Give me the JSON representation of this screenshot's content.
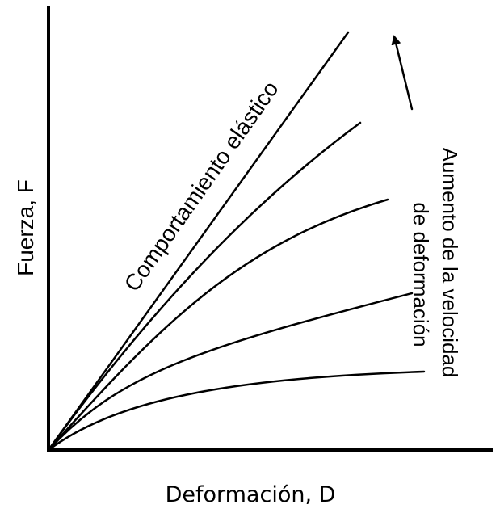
{
  "diagram": {
    "x_axis_label": "Deformación, D",
    "y_axis_label": "Fuerza, F",
    "elastic_label": "Comportamiento elástico",
    "rate_label_line1": "Aumento de la velocidad",
    "rate_label_line2": "de deformación",
    "curves": [
      {
        "kind": "elastic-linear"
      },
      {
        "kind": "strain-rate-curve"
      },
      {
        "kind": "strain-rate-curve"
      },
      {
        "kind": "strain-rate-curve"
      },
      {
        "kind": "strain-rate-curve"
      }
    ],
    "arrow_direction": "up"
  }
}
